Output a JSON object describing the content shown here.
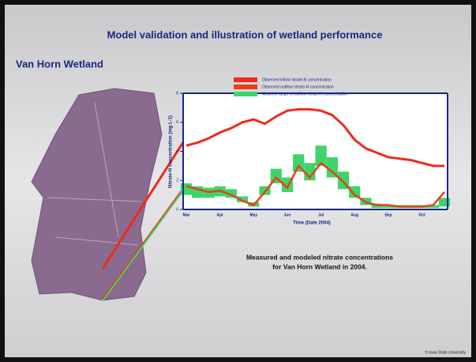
{
  "slide": {
    "title": "Model validation and illustration of wetland performance",
    "subtitle": "Van Horn Wetland",
    "caption": [
      "Measured and modeled nitrate concentrations",
      "for Van Horn Wetland in 2004."
    ],
    "footer": "© Iowa State University"
  },
  "chart_data": {
    "type": "line",
    "xlabel": "Time (Date 2004)",
    "ylabel": "Nitrate-N concentration (mg L-1)",
    "categories": [
      "Mar",
      null,
      null,
      "Apr",
      null,
      null,
      "May",
      null,
      null,
      "Jun",
      null,
      null,
      "Jul",
      null,
      null,
      "Aug",
      null,
      null,
      "Sep",
      null,
      null,
      "Oct",
      null,
      null
    ],
    "ylim": [
      0,
      8
    ],
    "yticks": [
      0,
      2,
      4,
      6,
      8
    ],
    "series": [
      {
        "name": "Observed inflow nitrate-N concentration",
        "color": "#ee2a1c",
        "values": [
          4.4,
          4.6,
          4.9,
          5.3,
          5.6,
          6.0,
          6.2,
          5.9,
          6.4,
          6.8,
          6.9,
          6.9,
          6.8,
          6.5,
          5.8,
          4.8,
          4.2,
          3.9,
          3.6,
          3.5,
          3.4,
          3.2,
          3.0,
          3.0
        ]
      },
      {
        "name": "Observed outflow nitrate-N concentration",
        "color": "#e8401a",
        "values": [
          1.6,
          1.4,
          1.2,
          1.3,
          1.0,
          0.6,
          0.3,
          1.2,
          2.2,
          1.5,
          3.0,
          2.2,
          3.2,
          2.6,
          1.9,
          1.0,
          0.5,
          0.3,
          0.3,
          0.2,
          0.2,
          0.2,
          0.3,
          1.2
        ]
      },
      {
        "name": "Modeled range of outflow nitrate-N concentration",
        "color": "#3fd46a",
        "values": [
          1.0,
          0.8,
          0.8,
          0.9,
          0.8,
          0.5,
          0.2,
          1.0,
          1.8,
          1.2,
          2.6,
          2.0,
          3.0,
          2.2,
          1.4,
          0.8,
          0.3,
          0.1,
          0.1,
          0.1,
          0.1,
          0.1,
          0.1,
          0.2
        ],
        "high": [
          1.8,
          1.6,
          1.5,
          1.6,
          1.4,
          0.9,
          0.5,
          1.6,
          2.8,
          2.2,
          3.8,
          3.2,
          4.4,
          3.6,
          2.6,
          1.6,
          0.8,
          0.4,
          0.3,
          0.3,
          0.3,
          0.3,
          0.3,
          0.8
        ]
      }
    ]
  }
}
